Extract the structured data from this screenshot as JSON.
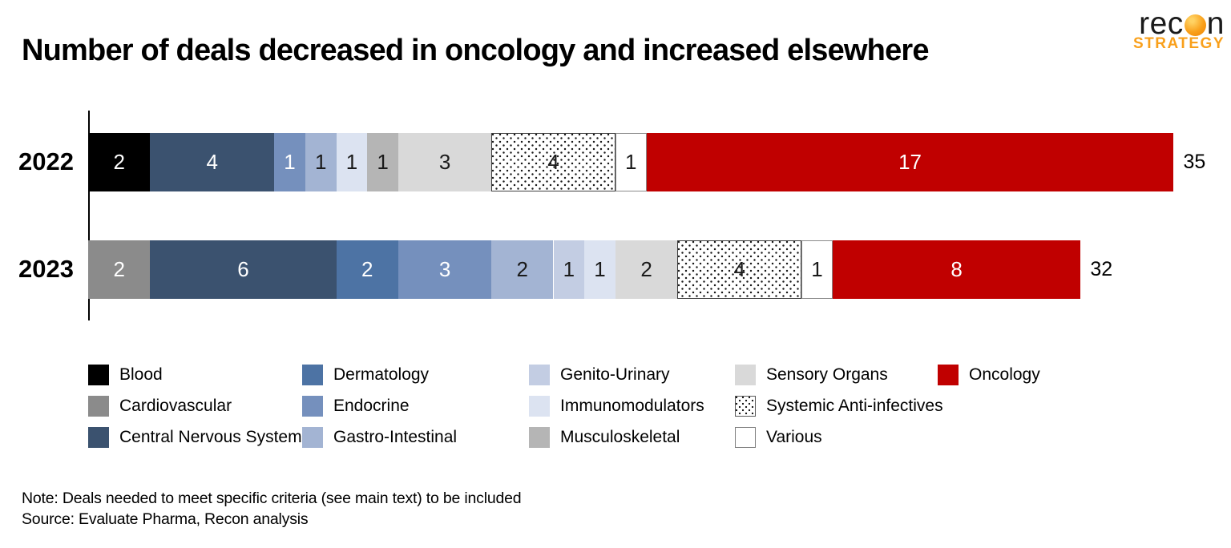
{
  "title": "Number of deals decreased in oncology and increased elsewhere",
  "logo": {
    "brand_pre": "rec",
    "brand_post": "n",
    "strategy": "STRATEGY",
    "orange": "#F9A01B"
  },
  "notes": {
    "note": "Note: Deals needed to meet specific criteria (see main text) to be included",
    "source": "Source: Evaluate Pharma, Recon analysis"
  },
  "chart_data": {
    "type": "bar",
    "orientation": "horizontal",
    "stacked": true,
    "categories": [
      "2022",
      "2023"
    ],
    "totals": [
      35,
      32
    ],
    "axis_max_units": 35,
    "x_axis": "hidden",
    "legend_position": "bottom",
    "series": [
      {
        "name": "Blood",
        "color": "#000000",
        "pattern": "solid",
        "label_color": "#ffffff",
        "values": [
          2,
          0
        ]
      },
      {
        "name": "Cardiovascular",
        "color": "#8B8B8B",
        "pattern": "solid",
        "label_color": "#ffffff",
        "values": [
          0,
          2
        ]
      },
      {
        "name": "Central Nervous System",
        "color": "#3B526F",
        "pattern": "solid",
        "label_color": "#ffffff",
        "values": [
          4,
          6
        ]
      },
      {
        "name": "Dermatology",
        "color": "#4D73A4",
        "pattern": "solid",
        "label_color": "#ffffff",
        "values": [
          0,
          2
        ]
      },
      {
        "name": "Endocrine",
        "color": "#7590BD",
        "pattern": "solid",
        "label_color": "#ffffff",
        "values": [
          1,
          3
        ]
      },
      {
        "name": "Gastro-Intestinal",
        "color": "#A3B4D3",
        "pattern": "solid",
        "label_color": "#1a1a1a",
        "values": [
          1,
          2
        ]
      },
      {
        "name": "Genito-Urinary",
        "color": "#C3CDE3",
        "pattern": "solid",
        "label_color": "#1a1a1a",
        "values": [
          0,
          1
        ]
      },
      {
        "name": "Immunomodulators",
        "color": "#DCE3F1",
        "pattern": "solid",
        "label_color": "#1a1a1a",
        "values": [
          1,
          1
        ]
      },
      {
        "name": "Musculoskeletal",
        "color": "#B5B5B5",
        "pattern": "solid",
        "label_color": "#1a1a1a",
        "values": [
          1,
          0
        ]
      },
      {
        "name": "Sensory Organs",
        "color": "#D9D9D9",
        "pattern": "solid",
        "label_color": "#1a1a1a",
        "values": [
          3,
          2
        ]
      },
      {
        "name": "Systemic Anti-infectives",
        "color": "#FFFFFF",
        "pattern": "dots",
        "label_color": "#1a1a1a",
        "values": [
          4,
          4
        ]
      },
      {
        "name": "Various",
        "color": "#FFFFFF",
        "pattern": "outline",
        "label_color": "#1a1a1a",
        "values": [
          1,
          1
        ]
      },
      {
        "name": "Oncology",
        "color": "#C00000",
        "pattern": "solid",
        "label_color": "#ffffff",
        "values": [
          17,
          8
        ]
      }
    ]
  }
}
